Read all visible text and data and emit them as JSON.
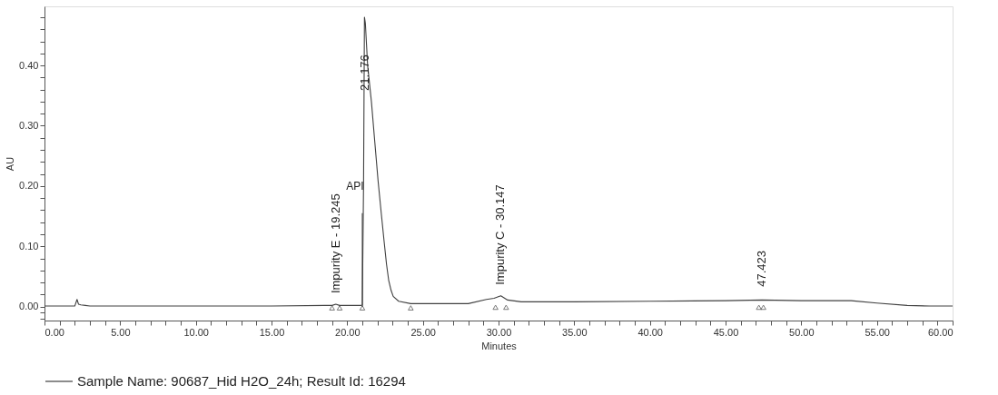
{
  "chart_data": {
    "type": "line",
    "xlabel": "Minutes",
    "ylabel": "AU",
    "legend": "bottom",
    "grid": false,
    "xlim": [
      0,
      60
    ],
    "ylim": [
      -0.023,
      0.498
    ],
    "xticks": [
      {
        "value": 0,
        "label": "0.00"
      },
      {
        "value": 1,
        "label": null
      },
      {
        "value": 2,
        "label": null
      },
      {
        "value": 3,
        "label": null
      },
      {
        "value": 4,
        "label": null
      },
      {
        "value": 5,
        "label": "5.00"
      },
      {
        "value": 6,
        "label": null
      },
      {
        "value": 7,
        "label": null
      },
      {
        "value": 8,
        "label": null
      },
      {
        "value": 9,
        "label": null
      },
      {
        "value": 10,
        "label": "10.00"
      },
      {
        "value": 11,
        "label": null
      },
      {
        "value": 12,
        "label": null
      },
      {
        "value": 13,
        "label": null
      },
      {
        "value": 14,
        "label": null
      },
      {
        "value": 15,
        "label": "15.00"
      },
      {
        "value": 16,
        "label": null
      },
      {
        "value": 17,
        "label": null
      },
      {
        "value": 18,
        "label": null
      },
      {
        "value": 19,
        "label": null
      },
      {
        "value": 20,
        "label": "20.00"
      },
      {
        "value": 21,
        "label": null
      },
      {
        "value": 22,
        "label": null
      },
      {
        "value": 23,
        "label": null
      },
      {
        "value": 24,
        "label": null
      },
      {
        "value": 25,
        "label": "25.00"
      },
      {
        "value": 26,
        "label": null
      },
      {
        "value": 27,
        "label": null
      },
      {
        "value": 28,
        "label": null
      },
      {
        "value": 29,
        "label": null
      },
      {
        "value": 30,
        "label": "30.00"
      },
      {
        "value": 31,
        "label": null
      },
      {
        "value": 32,
        "label": null
      },
      {
        "value": 33,
        "label": null
      },
      {
        "value": 34,
        "label": null
      },
      {
        "value": 35,
        "label": "35.00"
      },
      {
        "value": 36,
        "label": null
      },
      {
        "value": 37,
        "label": null
      },
      {
        "value": 38,
        "label": null
      },
      {
        "value": 39,
        "label": null
      },
      {
        "value": 40,
        "label": "40.00"
      },
      {
        "value": 41,
        "label": null
      },
      {
        "value": 42,
        "label": null
      },
      {
        "value": 43,
        "label": null
      },
      {
        "value": 44,
        "label": null
      },
      {
        "value": 45,
        "label": "45.00"
      },
      {
        "value": 46,
        "label": null
      },
      {
        "value": 47,
        "label": null
      },
      {
        "value": 48,
        "label": null
      },
      {
        "value": 49,
        "label": null
      },
      {
        "value": 50,
        "label": "50.00"
      },
      {
        "value": 51,
        "label": null
      },
      {
        "value": 52,
        "label": null
      },
      {
        "value": 53,
        "label": null
      },
      {
        "value": 54,
        "label": null
      },
      {
        "value": 55,
        "label": "55.00"
      },
      {
        "value": 56,
        "label": null
      },
      {
        "value": 57,
        "label": null
      },
      {
        "value": 58,
        "label": null
      },
      {
        "value": 59,
        "label": null
      },
      {
        "value": 60,
        "label": "60.00"
      }
    ],
    "yticks": [
      {
        "value": -0.02,
        "label": null
      },
      {
        "value": -0.01,
        "label": null
      },
      {
        "value": 0,
        "label": "0.00"
      },
      {
        "value": 0.02,
        "label": null
      },
      {
        "value": 0.04,
        "label": null
      },
      {
        "value": 0.06,
        "label": null
      },
      {
        "value": 0.08,
        "label": null
      },
      {
        "value": 0.1,
        "label": "0.10"
      },
      {
        "value": 0.12,
        "label": null
      },
      {
        "value": 0.14,
        "label": null
      },
      {
        "value": 0.16,
        "label": null
      },
      {
        "value": 0.18,
        "label": null
      },
      {
        "value": 0.2,
        "label": "0.20"
      },
      {
        "value": 0.22,
        "label": null
      },
      {
        "value": 0.24,
        "label": null
      },
      {
        "value": 0.26,
        "label": null
      },
      {
        "value": 0.28,
        "label": null
      },
      {
        "value": 0.3,
        "label": "0.30"
      },
      {
        "value": 0.32,
        "label": null
      },
      {
        "value": 0.34,
        "label": null
      },
      {
        "value": 0.36,
        "label": null
      },
      {
        "value": 0.38,
        "label": null
      },
      {
        "value": 0.4,
        "label": "0.40"
      },
      {
        "value": 0.42,
        "label": null
      },
      {
        "value": 0.44,
        "label": null
      },
      {
        "value": 0.46,
        "label": null
      },
      {
        "value": 0.48,
        "label": null
      }
    ],
    "series": [
      {
        "name": "Sample Name: 90687_Hid H2O_24h; Result Id: 16294",
        "color": "#404040",
        "marker": "none",
        "x": [
          0,
          2.0,
          2.15,
          2.25,
          2.4,
          2.7,
          3.0,
          7,
          9,
          15,
          18.5,
          19.0,
          19.245,
          19.5,
          20.9,
          21.0,
          21.08,
          21.14,
          21.2,
          21.35,
          21.6,
          21.8,
          22.04,
          22.25,
          22.44,
          22.6,
          22.74,
          22.9,
          23.04,
          23.4,
          24.2,
          28,
          29.2,
          29.7,
          30.15,
          30.6,
          31.5,
          35,
          40,
          45,
          47.42,
          50,
          53.3,
          55,
          57,
          58.5,
          60
        ],
        "values": [
          0.001,
          0.001,
          0.012,
          0.004,
          0.003,
          0.002,
          0.001,
          0.001,
          0.001,
          0.001,
          0.002,
          0.002,
          0.004,
          0.002,
          0.002,
          0.003,
          0.2,
          0.48,
          0.47,
          0.4,
          0.34,
          0.28,
          0.209,
          0.155,
          0.108,
          0.07,
          0.044,
          0.027,
          0.017,
          0.009,
          0.005,
          0.005,
          0.012,
          0.014,
          0.018,
          0.011,
          0.008,
          0.008,
          0.009,
          0.01,
          0.011,
          0.01,
          0.01,
          0.006,
          0.002,
          0.001,
          0.001
        ]
      },
      {
        "type": "line",
        "color": "#404040",
        "marker": "none",
        "x": [
          21.0,
          21.0
        ],
        "values": [
          0,
          0.155
        ]
      },
      {
        "type": "scatter",
        "color": "#404040",
        "marker": "triangle",
        "x": [
          19.0,
          19.5,
          21.0,
          24.2,
          29.8,
          30.5,
          47.2,
          47.5
        ],
        "values": [
          -0.002,
          -0.002,
          -0.002,
          -0.002,
          -0.001,
          -0.001,
          -0.001,
          -0.001
        ]
      }
    ],
    "annotations": [
      {
        "text": "Impurity E - 19.245",
        "x": 19.245,
        "y": 0.004
      },
      {
        "text": "21.176",
        "x": 21.176,
        "y": 0.34
      },
      {
        "text": "Impurity C - 30.147",
        "x": 30.147,
        "y": 0.018
      },
      {
        "text": "47.423",
        "x": 47.423,
        "y": 0.015
      },
      {
        "text": "API",
        "x": 21.0,
        "y": 0.2
      }
    ]
  }
}
